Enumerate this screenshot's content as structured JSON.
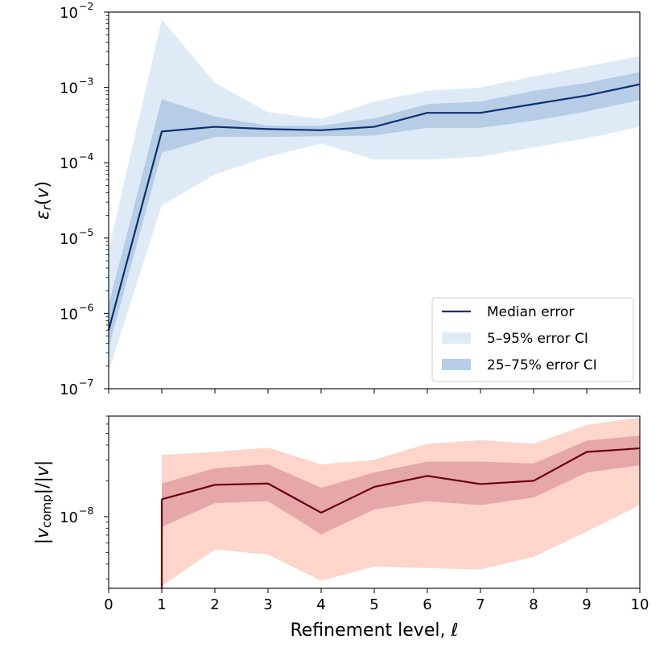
{
  "chart_data": [
    {
      "type": "line",
      "yscale": "log",
      "xlim": [
        0,
        10
      ],
      "ylim": [
        1e-07,
        0.01
      ],
      "ylabel": "εr(v)",
      "xticks": [
        0,
        1,
        2,
        3,
        4,
        5,
        6,
        7,
        8,
        9,
        10
      ],
      "xtick_labels_shown": false,
      "yticks": [
        1e-07,
        1e-06,
        1e-05,
        0.0001,
        0.001,
        0.01
      ],
      "ytick_base": "10",
      "ytick_exponents": [
        "−7",
        "−6",
        "−5",
        "−4",
        "−3",
        "−2"
      ],
      "x": [
        0,
        1,
        2,
        3,
        4,
        5,
        6,
        7,
        8,
        9,
        10
      ],
      "series": [
        {
          "name": "Median error",
          "kind": "line",
          "color": "#08306b",
          "values": [
            6e-07,
            0.00026,
            0.0003,
            0.00028,
            0.00027,
            0.0003,
            0.00046,
            0.00046,
            0.0006,
            0.00078,
            0.0011
          ]
        },
        {
          "name": "5–95% error CI",
          "kind": "band",
          "color": "#deebf7",
          "lower": [
            1.7e-07,
            2.7e-05,
            7e-05,
            0.00012,
            0.00018,
            0.00011,
            0.00011,
            0.00012,
            0.00016,
            0.00021,
            0.0003
          ],
          "upper": [
            7e-06,
            0.008,
            0.00115,
            0.00047,
            0.00038,
            0.00065,
            0.0009,
            0.001,
            0.0014,
            0.0019,
            0.0026
          ]
        },
        {
          "name": "25–75% error CI",
          "kind": "band",
          "color": "#b7cde6",
          "lower": [
            3.5e-07,
            0.000135,
            0.00022,
            0.00022,
            0.000225,
            0.00023,
            0.00029,
            0.00029,
            0.00036,
            0.00048,
            0.00068
          ],
          "upper": [
            1.3e-06,
            0.0007,
            0.00041,
            0.00031,
            0.00031,
            0.00039,
            0.0006,
            0.00065,
            0.0009,
            0.00115,
            0.0016
          ]
        }
      ],
      "legend": {
        "position": "lower-right",
        "entries": [
          "Median error",
          "5–95% error CI",
          "25–75% error CI"
        ]
      }
    },
    {
      "type": "line",
      "yscale": "log",
      "xlim": [
        0,
        10
      ],
      "ylim": [
        2.5e-09,
        7e-08
      ],
      "ylabel": "|vcomp|/|v|",
      "xlabel": "Refinement level, ℓ",
      "xticks": [
        0,
        1,
        2,
        3,
        4,
        5,
        6,
        7,
        8,
        9,
        10
      ],
      "xtick_labels": [
        "0",
        "1",
        "2",
        "3",
        "4",
        "5",
        "6",
        "7",
        "8",
        "9",
        "10"
      ],
      "yticks": [
        1e-08
      ],
      "ytick_base": "10",
      "ytick_exponents": [
        "−8"
      ],
      "x": [
        1,
        2,
        3,
        4,
        5,
        6,
        7,
        8,
        9,
        10
      ],
      "series": [
        {
          "name": "median",
          "kind": "line",
          "color": "#67000d",
          "values": [
            1.4e-08,
            1.85e-08,
            1.9e-08,
            1.08e-08,
            1.78e-08,
            2.2e-08,
            1.88e-08,
            2e-08,
            3.5e-08,
            3.75e-08
          ]
        },
        {
          "name": "5–95% CI",
          "kind": "band",
          "color": "#fdd5cb",
          "lower": [
            2.6e-09,
            5.3e-09,
            4.8e-09,
            2.9e-09,
            3.8e-09,
            3.7e-09,
            3.6e-09,
            4.6e-09,
            7.5e-09,
            1.25e-08
          ],
          "upper": [
            3.3e-08,
            3.5e-08,
            3.8e-08,
            2.75e-08,
            3e-08,
            4.1e-08,
            4.4e-08,
            4.1e-08,
            5.9e-08,
            6.8e-08
          ]
        },
        {
          "name": "25–75% CI",
          "kind": "band",
          "color": "#e6a7a9",
          "lower": [
            8.2e-09,
            1.3e-08,
            1.35e-08,
            7.1e-09,
            1.15e-08,
            1.35e-08,
            1.25e-08,
            1.45e-08,
            2.35e-08,
            2.7e-08
          ],
          "upper": [
            1.9e-08,
            2.55e-08,
            2.75e-08,
            1.75e-08,
            2.35e-08,
            2.9e-08,
            2.9e-08,
            2.8e-08,
            4.35e-08,
            4.8e-08
          ]
        }
      ],
      "drop_line": {
        "x": 1,
        "from": 1.4e-08,
        "to": 2.5e-09
      }
    }
  ]
}
